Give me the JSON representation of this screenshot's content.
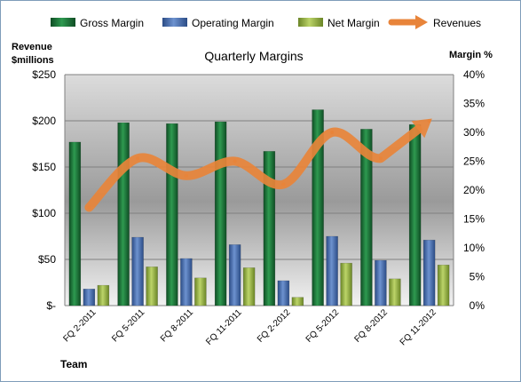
{
  "chart_data": {
    "type": "bar",
    "title": "Quarterly Margins",
    "ylabel_left": "Revenue $millions",
    "ylabel_left_lines": [
      "Revenue",
      "$millions"
    ],
    "ylabel_right": "Margin %",
    "xlabel": "Team",
    "categories": [
      "FQ 2-2011",
      "FQ 5-2011",
      "FQ 8-2011",
      "FQ 11-2011",
      "FQ 2-2012",
      "FQ 5-2012",
      "FQ 8-2012",
      "FQ 11-2012"
    ],
    "ylim_left": [
      0,
      250
    ],
    "ylim_right": [
      0,
      40
    ],
    "left_ticks": [
      "$-",
      "$50",
      "$100",
      "$150",
      "$200",
      "$250"
    ],
    "right_ticks": [
      "0%",
      "5%",
      "10%",
      "15%",
      "20%",
      "25%",
      "30%",
      "35%",
      "40%"
    ],
    "series": [
      {
        "name": "Gross Margin",
        "kind": "bar",
        "axis": "left",
        "color": "#1e7a3c",
        "values": [
          177,
          198,
          197,
          199,
          167,
          212,
          191,
          196
        ]
      },
      {
        "name": "Operating Margin",
        "kind": "bar",
        "axis": "left",
        "color": "#4a70b0",
        "values": [
          18,
          74,
          51,
          66,
          27,
          75,
          49,
          71
        ]
      },
      {
        "name": "Net Margin",
        "kind": "bar",
        "axis": "left",
        "color": "#9bb545",
        "values": [
          22,
          42,
          30,
          41,
          9,
          46,
          29,
          44
        ]
      },
      {
        "name": "Revenues",
        "kind": "line",
        "axis": "right",
        "color": "#e8843a",
        "values": [
          17,
          25.5,
          22.5,
          25,
          21,
          30,
          25.5,
          32
        ]
      }
    ],
    "legend_position": "top",
    "grid": true
  }
}
